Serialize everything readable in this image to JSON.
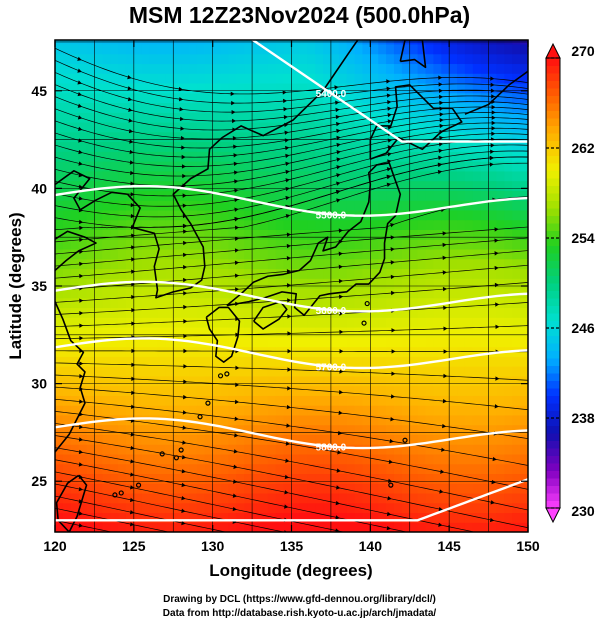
{
  "title": "MSM 12Z23Nov2024 (500.0hPa)",
  "x_axis": {
    "label": "Longitude (degrees)",
    "ticks": [
      "120",
      "125",
      "130",
      "135",
      "140",
      "145",
      "150"
    ],
    "range": [
      120,
      150
    ]
  },
  "y_axis": {
    "label": "Latitude  (degrees)",
    "ticks": [
      "25",
      "30",
      "35",
      "40",
      "45"
    ],
    "range": [
      22.4,
      47.6
    ]
  },
  "colorbar": {
    "ticks": [
      "230",
      "238",
      "246",
      "254",
      "262",
      "270"
    ],
    "range": [
      230,
      270
    ],
    "colors": [
      "#ff40ff",
      "#8000c0",
      "#1010b0",
      "#0030ff",
      "#00b0ff",
      "#00e0d0",
      "#00d080",
      "#20d020",
      "#a0e000",
      "#f0f000",
      "#ffb000",
      "#ff6000",
      "#ff1010"
    ]
  },
  "contours": [
    {
      "label": "5400.0",
      "lat": 42.4
    },
    {
      "label": "5500.0",
      "lat": 39.3
    },
    {
      "label": "5600.0",
      "lat": 34.4
    },
    {
      "label": "5700.0",
      "lat": 31.5
    },
    {
      "label": "5800.0",
      "lat": 27.4
    },
    {
      "label": "",
      "lat": 23.0
    }
  ],
  "credits": [
    "Drawing by DCL (https://www.gfd-dennou.org/library/dcl/)",
    "Data from http://database.rish.kyoto-u.ac.jp/arch/jmadata/"
  ],
  "colors": {
    "contour": "#ffffff",
    "arrow": "#000000",
    "coast": "#000000",
    "grid": "#000000"
  }
}
